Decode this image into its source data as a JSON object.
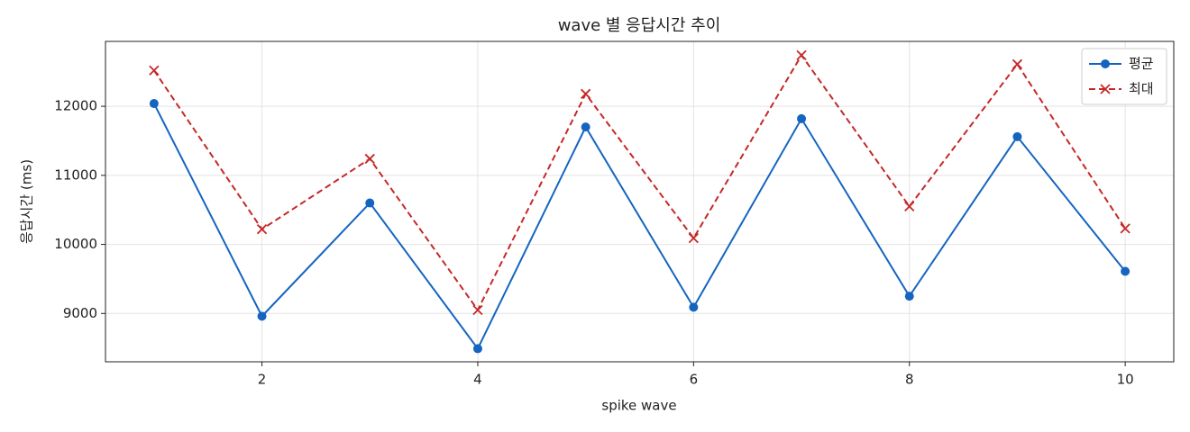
{
  "chart_data": {
    "type": "line",
    "title": "wave 별 응답시간 추이",
    "x_label": "spike wave",
    "y_label": "응답시간 (ms)",
    "x": [
      1,
      2,
      3,
      4,
      5,
      6,
      7,
      8,
      9,
      10
    ],
    "series": [
      {
        "name": "평균",
        "color": "#1565c0",
        "marker": "circle",
        "linestyle": "solid",
        "values": [
          12040,
          8960,
          10600,
          8490,
          11700,
          9090,
          11820,
          9250,
          11560,
          9610
        ]
      },
      {
        "name": "최대",
        "color": "#c62828",
        "marker": "x",
        "linestyle": "dashed",
        "values": [
          12520,
          10220,
          11240,
          9050,
          12180,
          10090,
          12740,
          10550,
          12610,
          10230
        ]
      }
    ],
    "xlim": [
      0.55,
      10.45
    ],
    "xticks": [
      2,
      4,
      6,
      8,
      10
    ],
    "ylim": [
      8300,
      12940
    ],
    "yticks": [
      9000,
      10000,
      11000,
      12000
    ],
    "grid": true,
    "legend": "upper right"
  }
}
